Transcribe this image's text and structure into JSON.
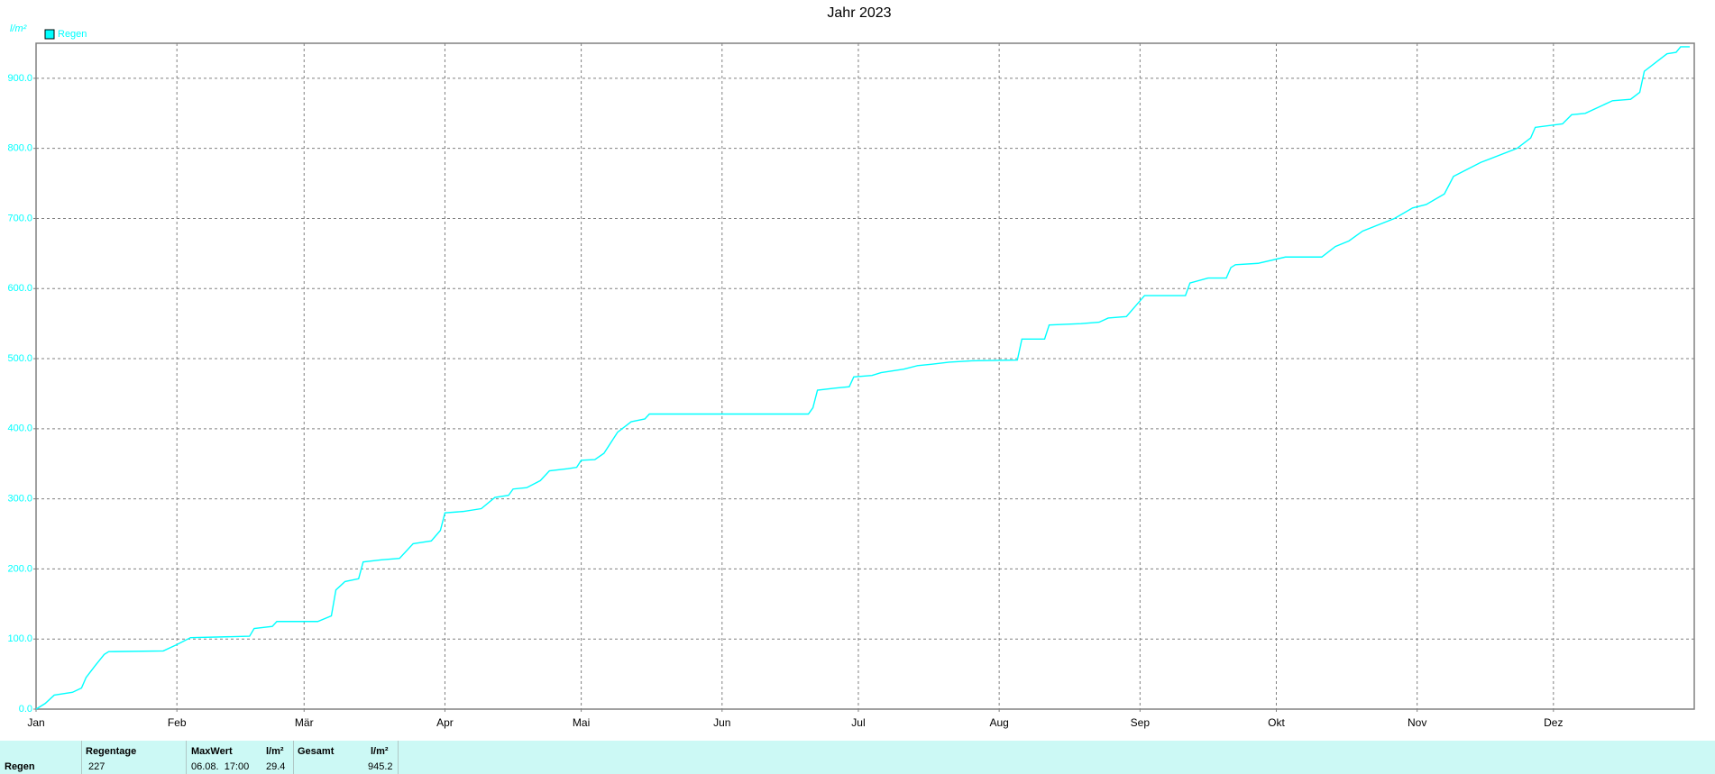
{
  "chart_data": {
    "type": "line",
    "title": "Jahr 2023",
    "y_label": "l/m²",
    "x": [
      0,
      2,
      4,
      8,
      10,
      11,
      13,
      15,
      16,
      28,
      31,
      34,
      47,
      48,
      52,
      53,
      62,
      65,
      66,
      68,
      71,
      72,
      76,
      80,
      83,
      87,
      89,
      90,
      94,
      98,
      101,
      104,
      105,
      108,
      111,
      113,
      117,
      119,
      120,
      123,
      125,
      128,
      131,
      134,
      135,
      170,
      171,
      172,
      176,
      179,
      180,
      184,
      186,
      191,
      194,
      197,
      201,
      206,
      216,
      217,
      222,
      223,
      230,
      234,
      236,
      240,
      242,
      244,
      253,
      254,
      258,
      262,
      263,
      264,
      269,
      275,
      283,
      286,
      289,
      292,
      299,
      303,
      306,
      310,
      312,
      315,
      318,
      326,
      329,
      330,
      336,
      338,
      341,
      347,
      351,
      353,
      354,
      357,
      359,
      361,
      362,
      364
    ],
    "series": [
      {
        "name": "Regen",
        "color": "#00ffff",
        "values": [
          0,
          8,
          20,
          24,
          30,
          45,
          62,
          78,
          82,
          83,
          92,
          102,
          104,
          115,
          118,
          125,
          125,
          133,
          170,
          182,
          186,
          210,
          213,
          215,
          236,
          240,
          255,
          280,
          282,
          286,
          302,
          305,
          314,
          316,
          326,
          340,
          343,
          345,
          355,
          356,
          365,
          395,
          410,
          414,
          421,
          421,
          430,
          455,
          458,
          460,
          474,
          476,
          480,
          485,
          490,
          492,
          495,
          497,
          498,
          528,
          528,
          548,
          550,
          552,
          558,
          560,
          575,
          590,
          590,
          608,
          615,
          615,
          630,
          634,
          636,
          645,
          645,
          660,
          668,
          682,
          700,
          715,
          720,
          735,
          760,
          770,
          780,
          800,
          815,
          830,
          835,
          848,
          850,
          868,
          870,
          880,
          910,
          925,
          935,
          937,
          945,
          945
        ]
      }
    ],
    "xlim": [
      0,
      365
    ],
    "xticks": [
      {
        "value": 0,
        "label": "Jan"
      },
      {
        "value": 31,
        "label": "Feb"
      },
      {
        "value": 59,
        "label": "Mär"
      },
      {
        "value": 90,
        "label": "Apr"
      },
      {
        "value": 120,
        "label": "Mai"
      },
      {
        "value": 151,
        "label": "Jun"
      },
      {
        "value": 181,
        "label": "Jul"
      },
      {
        "value": 212,
        "label": "Aug"
      },
      {
        "value": 243,
        "label": "Sep"
      },
      {
        "value": 273,
        "label": "Okt"
      },
      {
        "value": 304,
        "label": "Nov"
      },
      {
        "value": 334,
        "label": "Dez"
      }
    ],
    "ylim": [
      0,
      950
    ],
    "yticks": [
      {
        "value": 0,
        "label": "0.0"
      },
      {
        "value": 100,
        "label": "100.0"
      },
      {
        "value": 200,
        "label": "200.0"
      },
      {
        "value": 300,
        "label": "300.0"
      },
      {
        "value": 400,
        "label": "400.0"
      },
      {
        "value": 500,
        "label": "500.0"
      },
      {
        "value": 600,
        "label": "600.0"
      },
      {
        "value": 700,
        "label": "700.0"
      },
      {
        "value": 800,
        "label": "800.0"
      },
      {
        "value": 900,
        "label": "900.0"
      }
    ],
    "grid": true,
    "legend": "top-left"
  },
  "stats": {
    "row_label": "Regen",
    "headers": [
      "Regentage",
      "MaxWert",
      "l/m²",
      "Gesamt",
      "l/m²"
    ],
    "values": [
      "227",
      "06.08.  17:00",
      "29.4",
      "945.2"
    ]
  }
}
